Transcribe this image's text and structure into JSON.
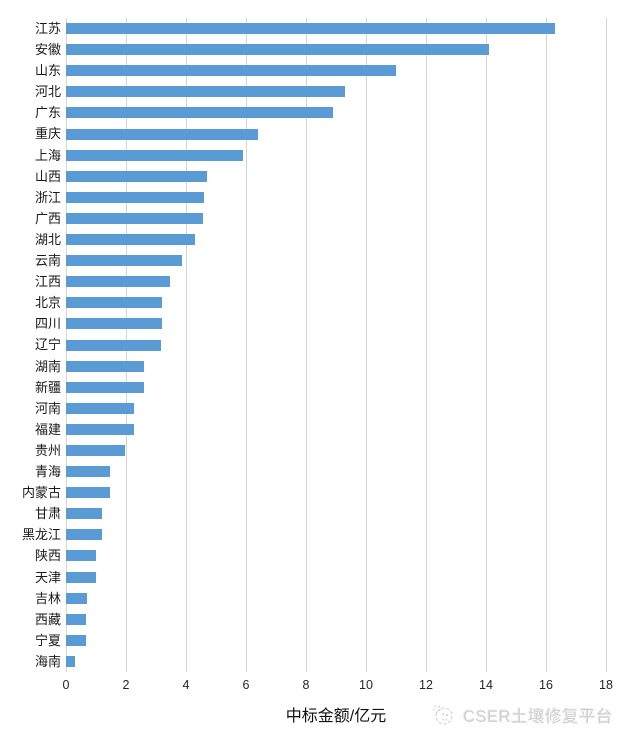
{
  "chart_data": {
    "type": "bar",
    "orientation": "horizontal",
    "title": "",
    "xlabel": "中标金额/亿元",
    "ylabel": "",
    "xlim": [
      0,
      18
    ],
    "xticks": [
      0,
      2,
      4,
      6,
      8,
      10,
      12,
      14,
      16,
      18
    ],
    "grid": true,
    "bar_color": "#5b9bd5",
    "gridline_color": "#d6d6d6",
    "categories": [
      "江苏",
      "安徽",
      "山东",
      "河北",
      "广东",
      "重庆",
      "上海",
      "山西",
      "浙江",
      "广西",
      "湖北",
      "云南",
      "江西",
      "北京",
      "四川",
      "辽宁",
      "湖南",
      "新疆",
      "河南",
      "福建",
      "贵州",
      "青海",
      "内蒙古",
      "甘肃",
      "黑龙江",
      "陕西",
      "天津",
      "吉林",
      "西藏",
      "宁夏",
      "海南"
    ],
    "values": [
      16.3,
      14.1,
      11.0,
      9.3,
      8.9,
      6.4,
      5.9,
      4.7,
      4.6,
      4.55,
      4.3,
      3.85,
      3.45,
      3.2,
      3.2,
      3.15,
      2.6,
      2.6,
      2.25,
      2.25,
      1.95,
      1.45,
      1.45,
      1.2,
      1.2,
      1.0,
      1.0,
      0.7,
      0.65,
      0.65,
      0.3
    ]
  },
  "watermark": {
    "text": "CSER土壤修复平台"
  }
}
